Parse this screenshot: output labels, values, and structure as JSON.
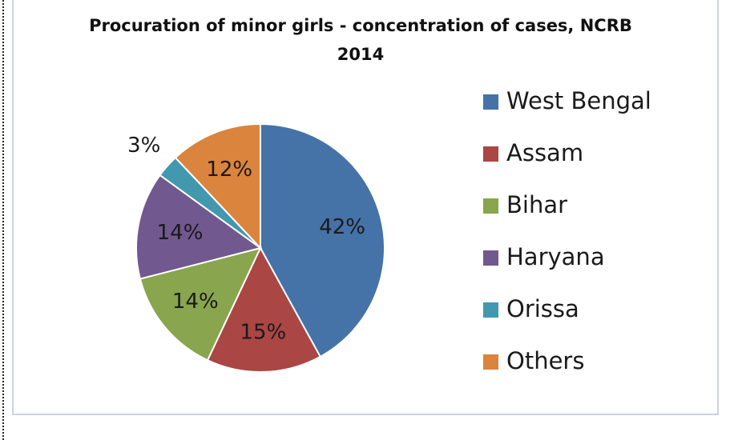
{
  "chart_data": {
    "type": "pie",
    "title_line1": "Procuration of minor girls - concentration of cases, NCRB",
    "title_line2": "2014",
    "categories": [
      "West Bengal",
      "Assam",
      "Bihar",
      "Haryana",
      "Orissa",
      "Others"
    ],
    "values": [
      42,
      15,
      14,
      14,
      3,
      12
    ],
    "labels": [
      "42%",
      "15%",
      "14%",
      "14%",
      "3%",
      "12%"
    ],
    "colors": [
      "#4572a7",
      "#aa4643",
      "#89a54e",
      "#71588f",
      "#4198af",
      "#db843d"
    ],
    "legend_position": "right"
  }
}
